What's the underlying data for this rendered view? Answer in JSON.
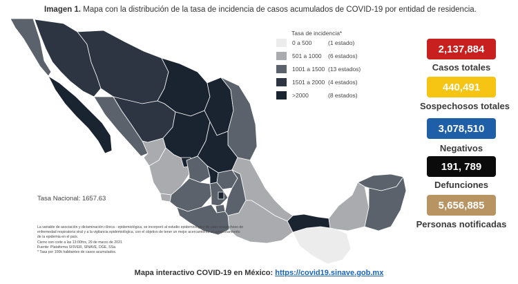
{
  "caption": {
    "prefix": "Imagen 1.",
    "text": "Mapa con la distribución de la tasa de incidencia de casos acumulados de COVID-19 por entidad de residencia."
  },
  "legend": {
    "title": "Tasa de incidencia*",
    "items": [
      {
        "range": "0 a   500",
        "count": "(1 estado)",
        "color": "#ececec"
      },
      {
        "range": "501 a  1000",
        "count": "(6 estados)",
        "color": "#a9abae"
      },
      {
        "range": "1001 a  1500",
        "count": "(13 estados)",
        "color": "#5b626b"
      },
      {
        "range": "1501 a  2000",
        "count": "(4 estados)",
        "color": "#2c3541"
      },
      {
        "range": ">2000",
        "count": "(8 estados)",
        "color": "#1a2330"
      }
    ]
  },
  "tasa_nacional": "Tasa Nacional: 1657.63",
  "notes": {
    "p1": "La variable de asociación y dictaminación clínica - epidemiológica, se incorporó al estudio epidemiológico de caso sospechoso de enfermedad respiratoria viral y a la vigilancia epidemiológica, con el objetivo de tener un mejor acercamiento al comportamiento de la epidemia en el país.",
    "p2": "Cierre con corte a las 13:00hrs, 29 de marzo de 2021",
    "p3": "Fuente: Plataforma SISVER, SINAVE, DGE, SSa.",
    "p4": "* Tasa por 100k habitantes de casos acumulados."
  },
  "stats": [
    {
      "value": "2,137,884",
      "label": "Casos totales",
      "bg": "#c8201f",
      "fg": "#ffffff"
    },
    {
      "value": "440,491",
      "label": "Sospechosos totales",
      "bg": "#f6c412",
      "fg": "#ffffff"
    },
    {
      "value": "3,078,510",
      "label": "Negativos",
      "bg": "#1f5fa8",
      "fg": "#ffffff"
    },
    {
      "value": "191, 789",
      "label": "Defunciones",
      "bg": "#0b0b0b",
      "fg": "#ffffff"
    },
    {
      "value": "5,656,885",
      "label": "Personas notificadas",
      "bg": "#b89463",
      "fg": "#ffffff"
    }
  ],
  "footer": {
    "text": "Mapa interactivo COVID-19 en México:",
    "link": "https://covid19.sinave.gob.mx"
  }
}
